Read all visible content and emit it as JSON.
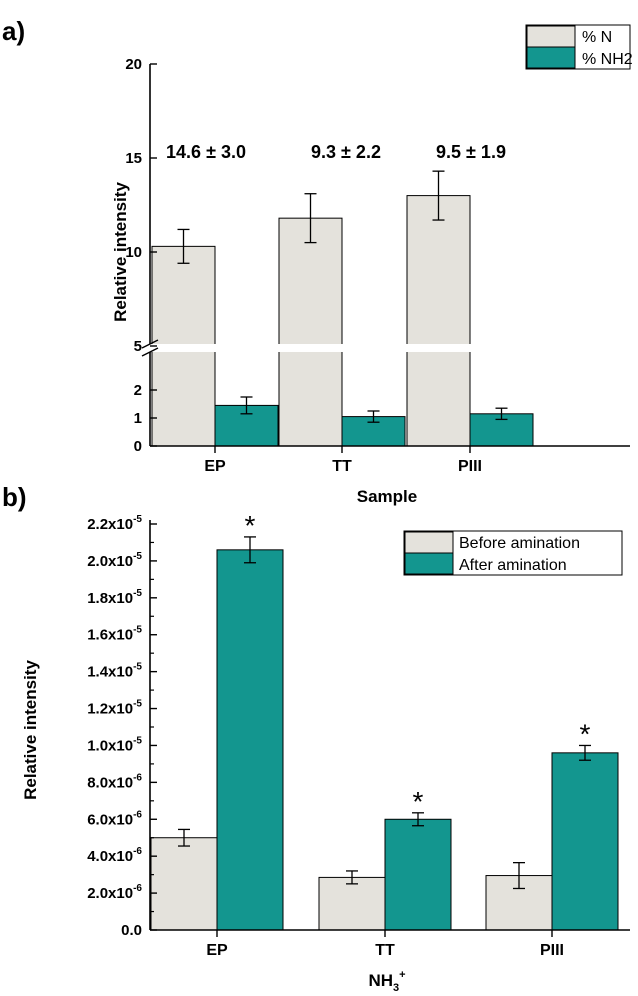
{
  "chart_data": [
    {
      "panel": "a)",
      "type": "bar",
      "categories": [
        "EP",
        "TT",
        "PIII"
      ],
      "xlabel": "Sample",
      "ylabel": "Relative intensity",
      "y_axis_break": [
        2.5,
        5
      ],
      "ylim": [
        0,
        20
      ],
      "y_ticks": [
        "0",
        "1",
        "2",
        "5",
        "10",
        "15",
        "20"
      ],
      "series": [
        {
          "name": "% N",
          "values": [
            10.3,
            11.8,
            13.0
          ],
          "errors": [
            0.9,
            1.3,
            1.3
          ],
          "color": "#e4e2dc"
        },
        {
          "name": "% NH2",
          "values": [
            1.45,
            1.05,
            1.15
          ],
          "errors": [
            0.3,
            0.2,
            0.2
          ],
          "color": "#13968f"
        }
      ],
      "annotations": [
        "14.6 ± 3.0",
        "9.3 ± 2.2",
        "9.5 ± 1.9"
      ],
      "legend_position": "top-right",
      "grid": false
    },
    {
      "panel": "b)",
      "type": "bar",
      "categories": [
        "EP",
        "TT",
        "PIII"
      ],
      "xlabel": "NH3+",
      "ylabel": "Relative intensity",
      "ylim": [
        0,
        2.2e-05
      ],
      "y_ticks": [
        "0.0",
        "2.0x10-6",
        "4.0x10-6",
        "6.0x10-6",
        "8.0x10-6",
        "1.0x10-5",
        "1.2x10-5",
        "1.4x10-5",
        "1.6x10-5",
        "1.8x10-5",
        "2.0x10-5",
        "2.2x10-5"
      ],
      "series": [
        {
          "name": "Before amination",
          "values": [
            5e-06,
            2.85e-06,
            2.95e-06
          ],
          "errors": [
            4.5e-07,
            3.5e-07,
            7e-07
          ],
          "color": "#e4e2dc"
        },
        {
          "name": "After amination",
          "values": [
            2.06e-05,
            6e-06,
            9.6e-06
          ],
          "errors": [
            7e-07,
            3.5e-07,
            4e-07
          ],
          "color": "#13968f"
        }
      ],
      "significance_marker": "*",
      "legend_position": "top-right",
      "grid": false
    }
  ]
}
